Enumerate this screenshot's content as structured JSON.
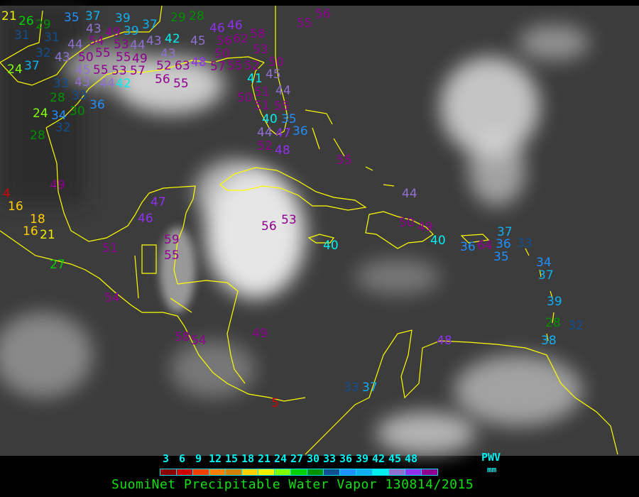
{
  "title": "SuomiNet Precipitable Water Vapor 130814/2015",
  "legend": {
    "unit_label": "PWV",
    "unit": "mm",
    "tick_labels": [
      "3",
      "6",
      "9",
      "12",
      "15",
      "18",
      "21",
      "24",
      "27",
      "30",
      "33",
      "36",
      "39",
      "42",
      "45",
      "48"
    ],
    "colors": [
      "#8b0000",
      "#d00000",
      "#f04000",
      "#ff8000",
      "#d08000",
      "#ffd000",
      "#f0f000",
      "#80ff00",
      "#00d000",
      "#009000",
      "#105090",
      "#2090ff",
      "#10b0f0",
      "#00f0f0",
      "#9070d0",
      "#9030f0",
      "#900090"
    ]
  },
  "map_colors": {
    "background": "#3c3c3c",
    "coastline": "#ffff00",
    "cloud": "#e8e8e8"
  },
  "stations": [
    "21",
    "26",
    "29",
    "31",
    "31",
    "35",
    "37",
    "39",
    "39",
    "37",
    "29",
    "28",
    "43",
    "54",
    "49",
    "44",
    "53",
    "44",
    "43",
    "42",
    "43",
    "45",
    "46",
    "46",
    "56",
    "62",
    "58",
    "53",
    "50",
    "32",
    "43",
    "50",
    "55",
    "55",
    "49",
    "52",
    "24",
    "37",
    "45",
    "43",
    "55",
    "53",
    "57",
    "56",
    "63",
    "55",
    "48",
    "57",
    "55",
    "52",
    "50",
    "41",
    "45",
    "33",
    "33",
    "44",
    "42",
    "28",
    "30",
    "34",
    "36",
    "24",
    "51",
    "50",
    "51",
    "28",
    "32",
    "49",
    "4",
    "16",
    "16",
    "18",
    "21",
    "27",
    "40",
    "44",
    "47",
    "52",
    "47",
    "46",
    "51",
    "59",
    "55",
    "54",
    "58",
    "54",
    "49",
    "56",
    "53",
    "44",
    "55",
    "35",
    "36",
    "48",
    "55",
    "44",
    "50",
    "49",
    "40",
    "40",
    "36",
    "64",
    "36",
    "37",
    "35",
    "33",
    "34",
    "37",
    "39",
    "28",
    "32",
    "38",
    "48",
    "55",
    "56",
    "33",
    "37",
    "5"
  ]
}
